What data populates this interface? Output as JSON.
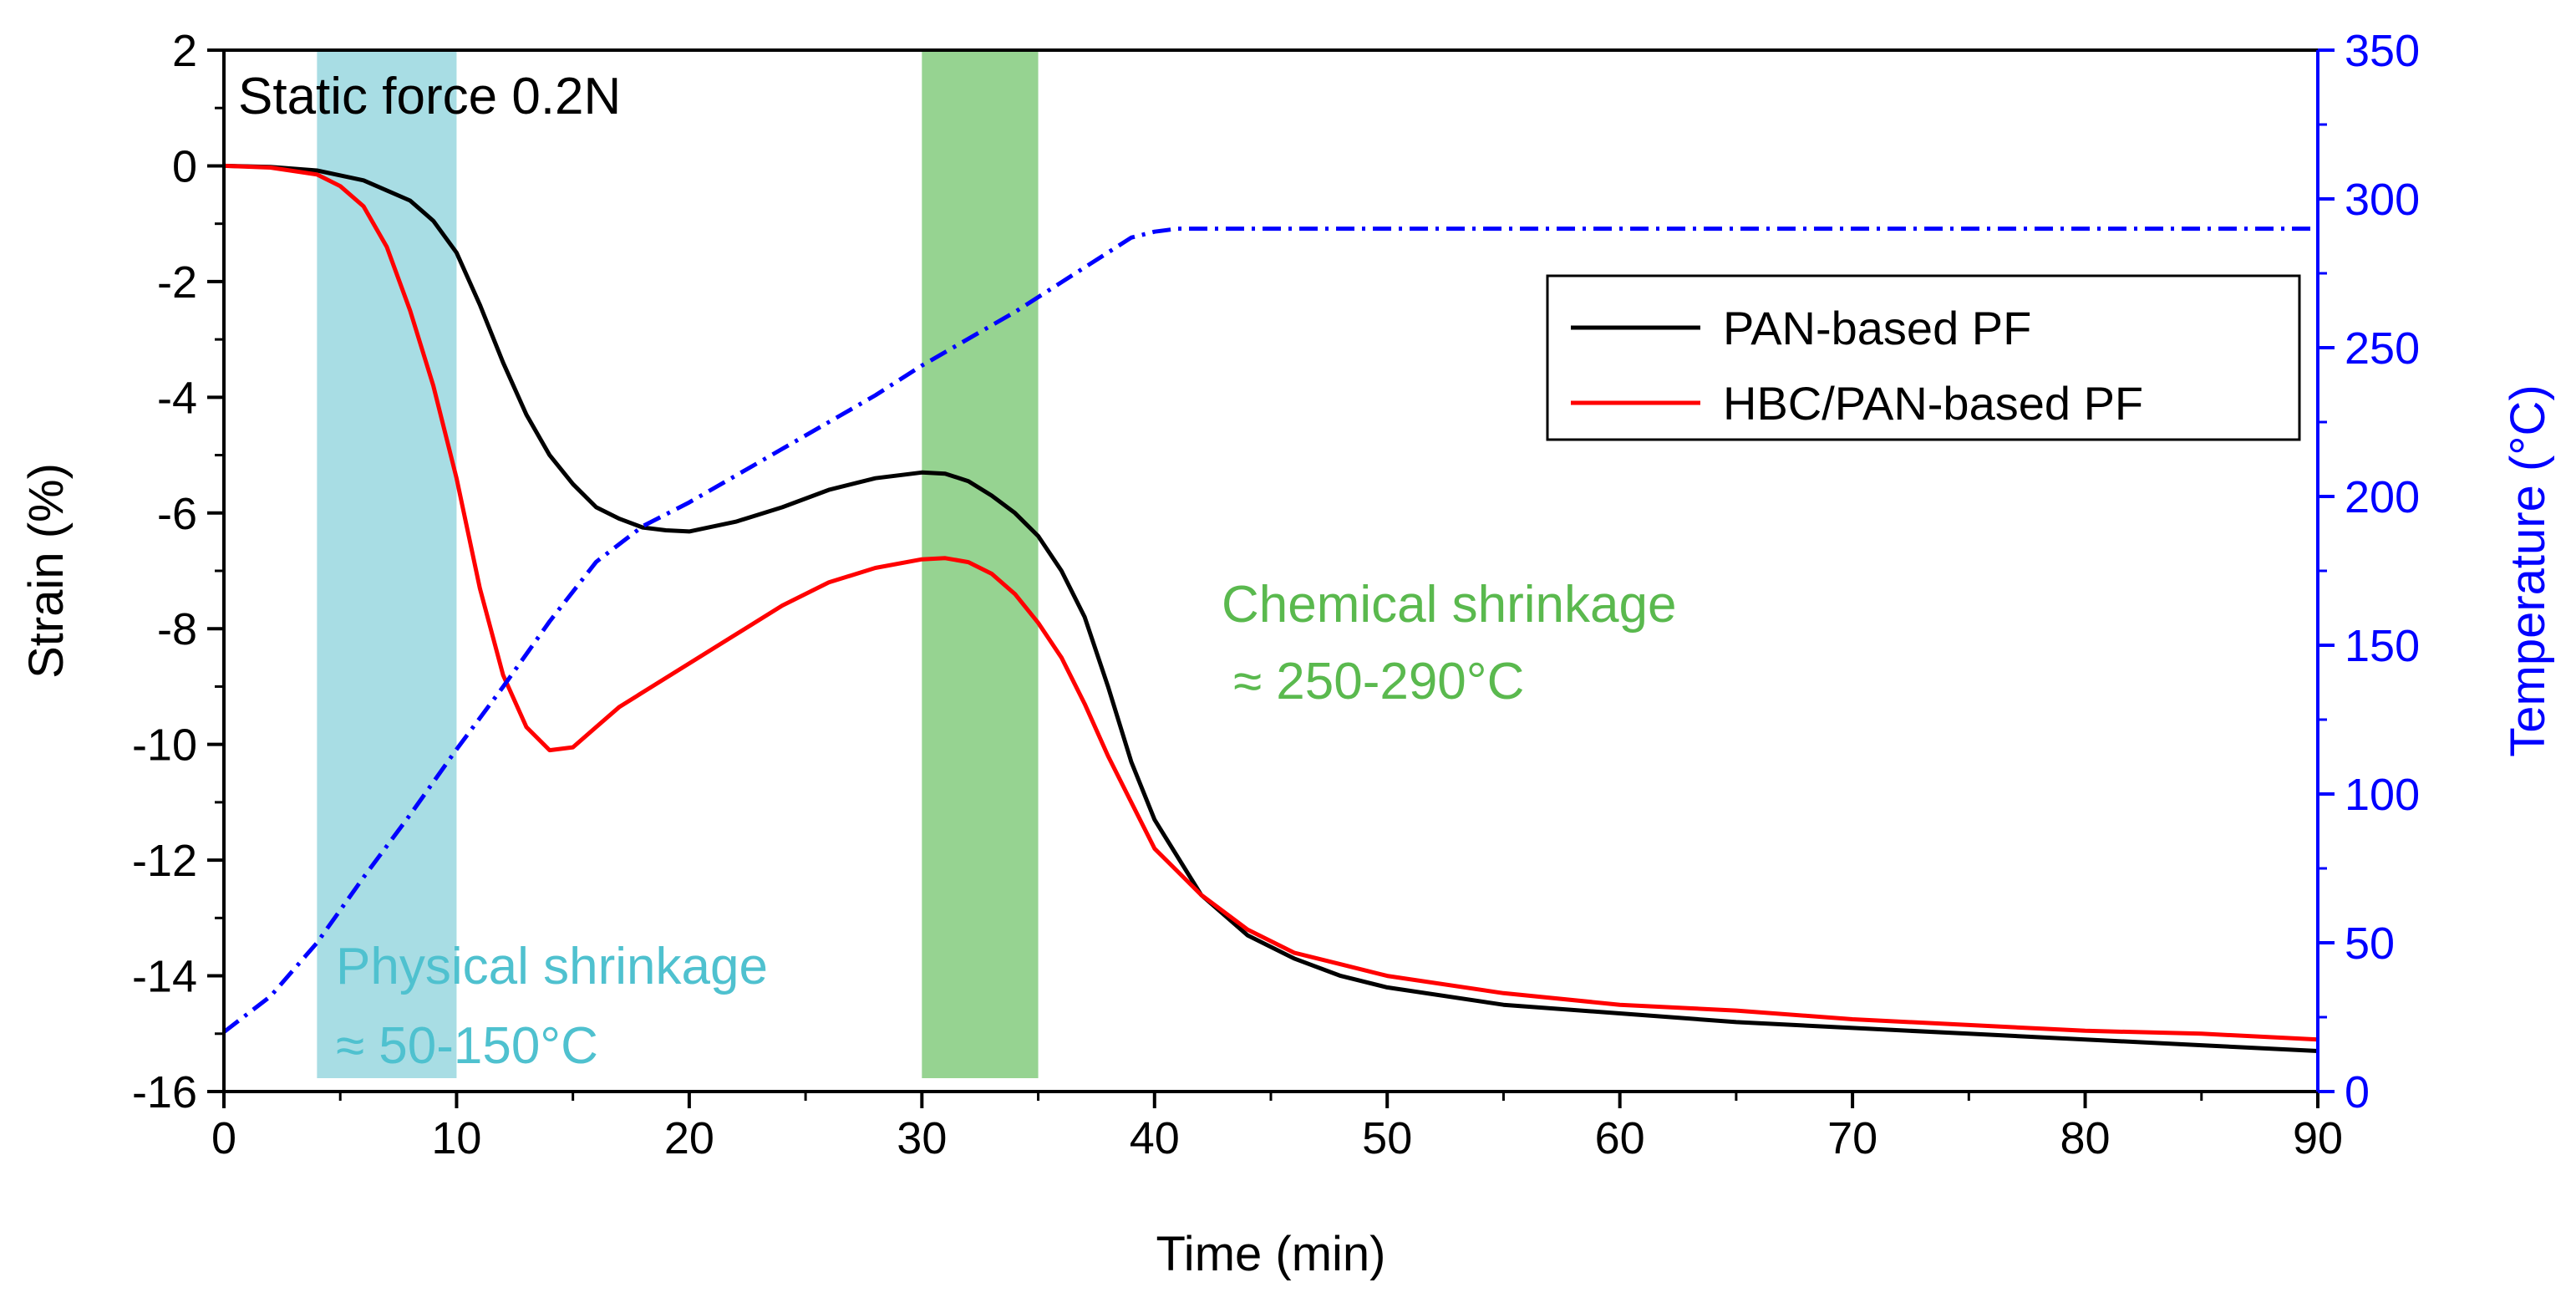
{
  "chart_data": {
    "type": "line",
    "title": "",
    "xlabel": "Time (min)",
    "ylabel": "Strain (%)",
    "y2label": "Temperature (°C)",
    "xlim": [
      0,
      90
    ],
    "ylim": [
      -16,
      2
    ],
    "y2lim": [
      0,
      350
    ],
    "x_ticks": [
      "0",
      "10",
      "20",
      "30",
      "40",
      "50",
      "60",
      "70",
      "80",
      "90"
    ],
    "y_ticks": [
      "2",
      "0",
      "-2",
      "-4",
      "-6",
      "-8",
      "-10",
      "-12",
      "-14",
      "-16"
    ],
    "y2_ticks": [
      "350",
      "300",
      "250",
      "200",
      "150",
      "100",
      "50",
      "0"
    ],
    "grid": false,
    "legend_position": "top-right",
    "colors": {
      "pan": "#000000",
      "hbc": "#ff0000",
      "temperature": "#0000ff",
      "physical_band": "#a8dde4",
      "chemical_band": "#96d391",
      "physical_text": "#4fc1cf",
      "chemical_text": "#5ab94e"
    },
    "shaded_regions": [
      {
        "x_start": 4,
        "x_end": 10,
        "label_line1": "Physical shrinkage",
        "label_line2": "≈ 50-150°C"
      },
      {
        "x_start": 30,
        "x_end": 35,
        "label_line1": "Chemical shrinkage",
        "label_line2": "≈ 250-290°C"
      }
    ],
    "annotation": "Static force 0.2N",
    "series": [
      {
        "name": "PAN-based PF",
        "axis": "left",
        "x": [
          0,
          2,
          4,
          6,
          8,
          9,
          10,
          11,
          12,
          13,
          14,
          15,
          16,
          17,
          18,
          19,
          20,
          22,
          24,
          26,
          28,
          30,
          31,
          32,
          33,
          34,
          35,
          36,
          37,
          38,
          39,
          40,
          42,
          44,
          46,
          48,
          50,
          55,
          60,
          65,
          70,
          75,
          80,
          85,
          90
        ],
        "y": [
          0,
          -0.02,
          -0.08,
          -0.25,
          -0.6,
          -0.95,
          -1.5,
          -2.4,
          -3.4,
          -4.3,
          -5.0,
          -5.5,
          -5.9,
          -6.1,
          -6.25,
          -6.3,
          -6.32,
          -6.15,
          -5.9,
          -5.6,
          -5.4,
          -5.3,
          -5.32,
          -5.45,
          -5.7,
          -6.0,
          -6.4,
          -7.0,
          -7.8,
          -9.0,
          -10.3,
          -11.3,
          -12.6,
          -13.3,
          -13.7,
          -14.0,
          -14.2,
          -14.5,
          -14.65,
          -14.8,
          -14.9,
          -15.0,
          -15.1,
          -15.2,
          -15.3
        ]
      },
      {
        "name": "HBC/PAN-based PF",
        "axis": "left",
        "x": [
          0,
          2,
          4,
          5,
          6,
          7,
          8,
          9,
          10,
          11,
          12,
          13,
          14,
          15,
          16,
          17,
          18,
          20,
          22,
          24,
          26,
          28,
          30,
          31,
          32,
          33,
          34,
          35,
          36,
          37,
          38,
          39,
          40,
          42,
          44,
          46,
          48,
          50,
          55,
          60,
          65,
          70,
          75,
          80,
          85,
          90
        ],
        "y": [
          0,
          -0.03,
          -0.15,
          -0.35,
          -0.7,
          -1.4,
          -2.5,
          -3.8,
          -5.4,
          -7.3,
          -8.8,
          -9.7,
          -10.1,
          -10.05,
          -9.7,
          -9.35,
          -9.1,
          -8.6,
          -8.1,
          -7.6,
          -7.2,
          -6.95,
          -6.8,
          -6.78,
          -6.85,
          -7.05,
          -7.4,
          -7.9,
          -8.5,
          -9.3,
          -10.2,
          -11.0,
          -11.8,
          -12.6,
          -13.2,
          -13.6,
          -13.8,
          -14.0,
          -14.3,
          -14.5,
          -14.6,
          -14.75,
          -14.85,
          -14.95,
          -15.0,
          -15.1
        ]
      },
      {
        "name": "Temperature",
        "axis": "right",
        "x": [
          0,
          2,
          4,
          6,
          8,
          10,
          12,
          14,
          16,
          18,
          20,
          22,
          24,
          26,
          28,
          30,
          32,
          34,
          36,
          37,
          38,
          39,
          40,
          41,
          45,
          50,
          60,
          70,
          80,
          90
        ],
        "y": [
          20,
          32,
          50,
          72,
          93,
          115,
          136,
          158,
          178,
          190,
          198,
          207,
          216,
          225,
          234,
          244,
          253,
          262,
          272,
          277,
          282,
          287,
          289,
          290,
          290,
          290,
          290,
          290,
          290,
          290
        ]
      }
    ]
  }
}
